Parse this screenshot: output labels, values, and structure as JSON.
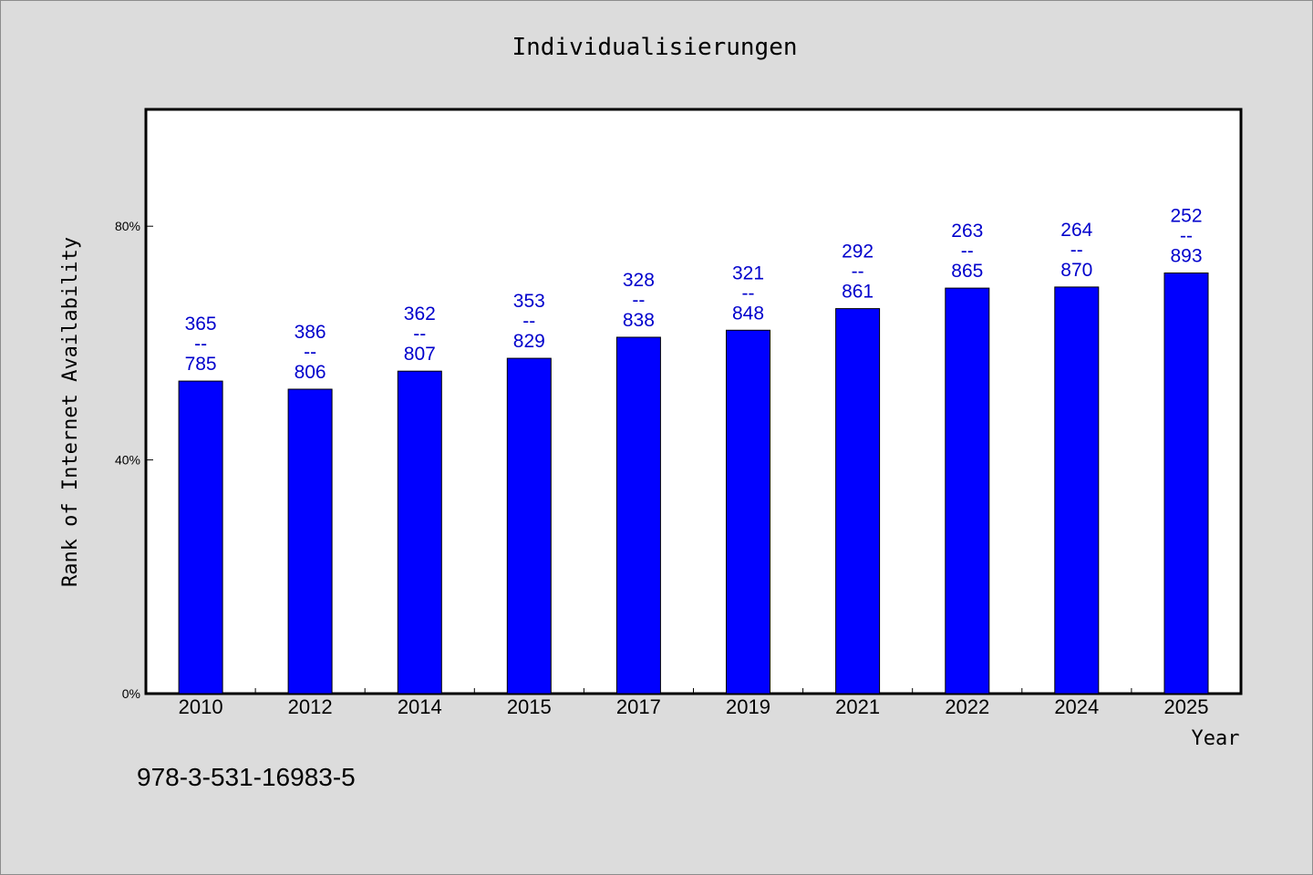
{
  "chart_data": {
    "type": "bar",
    "title": "Individualisierungen",
    "xlabel": "Year",
    "ylabel": "Rank of Internet Availability",
    "categories": [
      "2010",
      "2012",
      "2014",
      "2015",
      "2017",
      "2019",
      "2021",
      "2022",
      "2024",
      "2025"
    ],
    "values": [
      0.535,
      0.521,
      0.552,
      0.574,
      0.61,
      0.622,
      0.659,
      0.694,
      0.696,
      0.72
    ],
    "data_labels": [
      [
        "365",
        "--",
        "785"
      ],
      [
        "386",
        "--",
        "806"
      ],
      [
        "362",
        "--",
        "807"
      ],
      [
        "353",
        "--",
        "829"
      ],
      [
        "328",
        "--",
        "838"
      ],
      [
        "321",
        "--",
        "848"
      ],
      [
        "292",
        "--",
        "861"
      ],
      [
        "263",
        "--",
        "865"
      ],
      [
        "264",
        "--",
        "870"
      ],
      [
        "252",
        "--",
        "893"
      ]
    ],
    "ylim": [
      0,
      1.0
    ],
    "yticks": [
      0,
      0.4,
      0.8
    ],
    "ytick_labels": [
      "0%",
      "40%",
      "80%"
    ],
    "grid": false,
    "bar_color": "#0000ff",
    "label_color": "#0000cc"
  },
  "footer": {
    "isbn": "978-3-531-16983-5"
  }
}
